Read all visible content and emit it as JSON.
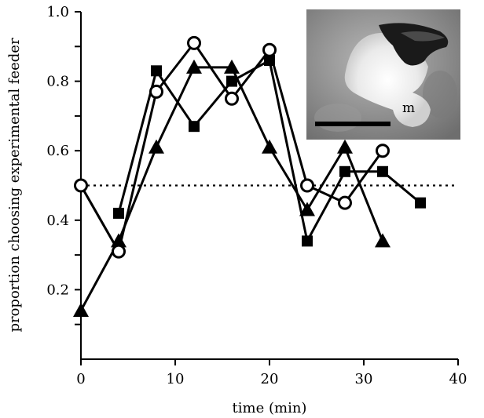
{
  "chart_data": {
    "type": "line",
    "xlabel": "time (min)",
    "ylabel": "proportion choosing experimental feeder",
    "xlim": [
      0,
      40
    ],
    "ylim": [
      0,
      1.0
    ],
    "x_ticks": [
      0,
      10,
      20,
      30,
      40
    ],
    "y_ticks": [
      0.2,
      0.4,
      0.6,
      0.8,
      1.0
    ],
    "y_tick_labels": [
      "0.2",
      "0.4",
      "0.6",
      "0.8",
      "1.0"
    ],
    "reference_line": {
      "y": 0.5,
      "style": "dotted"
    },
    "grid": false,
    "series": [
      {
        "marker": "square-filled",
        "color": "#000000",
        "x": [
          4,
          8,
          12,
          16,
          20,
          24,
          28,
          32,
          36
        ],
        "y": [
          0.42,
          0.83,
          0.67,
          0.8,
          0.86,
          0.34,
          0.54,
          0.54,
          0.45
        ]
      },
      {
        "marker": "circle-open",
        "color": "#000000",
        "x": [
          0,
          4,
          8,
          12,
          16,
          20,
          24,
          28,
          32
        ],
        "y": [
          0.5,
          0.31,
          0.77,
          0.91,
          0.75,
          0.89,
          0.5,
          0.45,
          0.6
        ]
      },
      {
        "marker": "triangle-filled",
        "color": "#000000",
        "x": [
          0,
          4,
          8,
          12,
          16,
          20,
          24,
          28,
          32
        ],
        "y": [
          0.14,
          0.34,
          0.61,
          0.84,
          0.84,
          0.61,
          0.43,
          0.61,
          0.34
        ]
      }
    ],
    "connector": {
      "from_x": 0,
      "from_y": 0.5,
      "to_x": 4,
      "to_y": 0.31,
      "color": "#555555"
    },
    "inset": {
      "description_label": "m"
    }
  }
}
